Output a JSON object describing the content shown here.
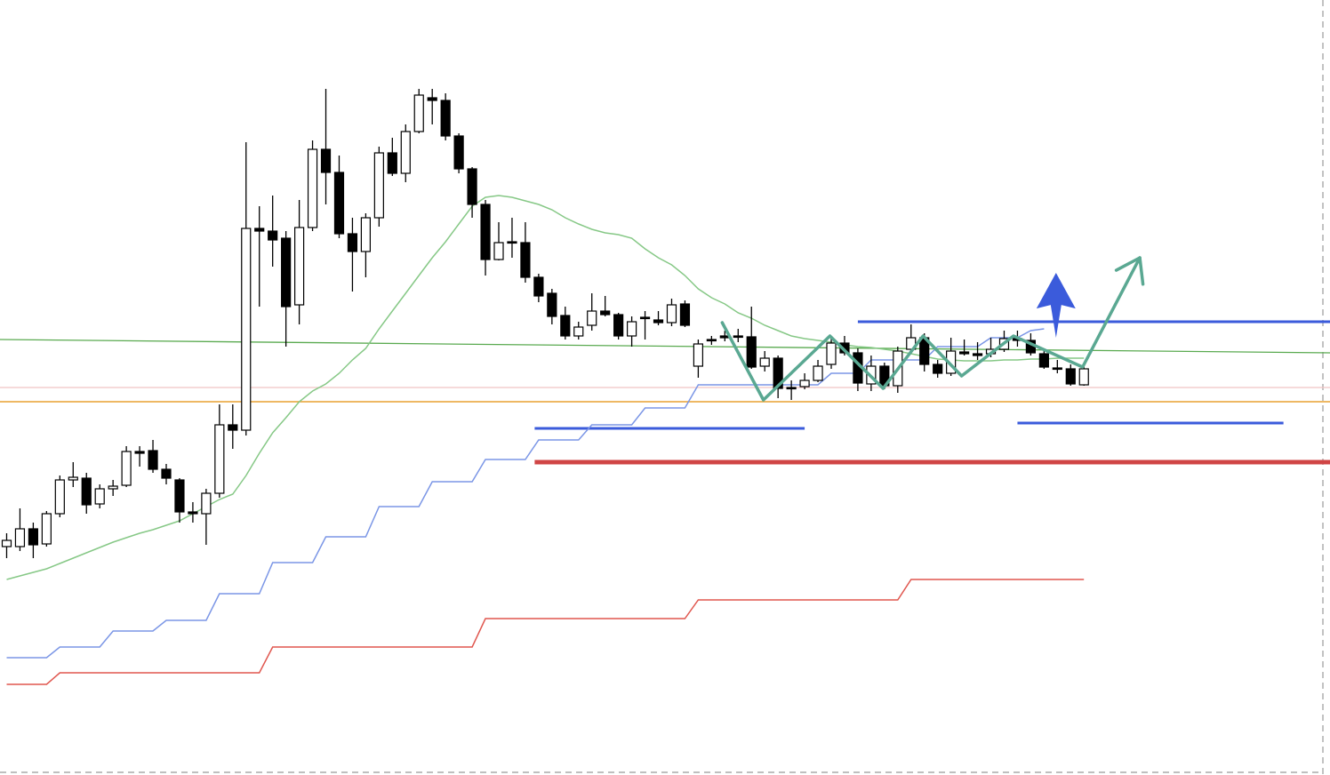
{
  "chart_data": {
    "type": "candlestick",
    "ylim": [
      0,
      872
    ],
    "xlim": [
      -0.5,
      99.5
    ],
    "up_color": "#ffffff",
    "down_color": "#000000",
    "open": [
      257,
      257,
      277,
      260,
      294,
      332,
      334,
      305,
      322,
      326,
      364,
      365,
      344,
      332,
      296,
      294,
      317,
      394,
      388,
      615,
      612,
      604,
      529,
      616,
      704,
      678,
      609,
      589,
      627,
      700,
      677,
      724,
      762,
      759,
      719,
      682,
      642,
      580,
      600,
      599,
      560,
      542,
      517,
      494,
      506,
      522,
      518,
      494,
      515,
      512,
      509,
      530,
      460,
      490,
      494,
      494,
      493,
      460,
      469,
      436,
      437,
      444,
      462,
      486,
      475,
      440,
      460,
      438,
      479,
      492,
      462,
      452,
      476,
      474,
      474,
      479,
      491,
      489,
      474,
      458,
      457,
      439
    ],
    "high": [
      272,
      300,
      284,
      297,
      337,
      352,
      340,
      327,
      332,
      370,
      370,
      377,
      350,
      334,
      307,
      322,
      417,
      417,
      712,
      640,
      652,
      612,
      647,
      714,
      772,
      697,
      627,
      632,
      707,
      717,
      732,
      772,
      772,
      767,
      722,
      684,
      647,
      622,
      627,
      622,
      564,
      547,
      527,
      510,
      542,
      539,
      520,
      516,
      522,
      522,
      536,
      534,
      490,
      494,
      500,
      502,
      527,
      477,
      472,
      444,
      452,
      467,
      494,
      494,
      480,
      472,
      464,
      482,
      507,
      497,
      467,
      492,
      490,
      487,
      492,
      500,
      500,
      497,
      480,
      467,
      462,
      460
    ],
    "low": [
      244,
      252,
      244,
      257,
      290,
      324,
      294,
      300,
      314,
      324,
      347,
      340,
      327,
      284,
      284,
      259,
      312,
      367,
      382,
      527,
      572,
      482,
      507,
      612,
      642,
      604,
      544,
      560,
      617,
      674,
      667,
      722,
      732,
      714,
      677,
      627,
      562,
      579,
      582,
      554,
      532,
      507,
      490,
      490,
      500,
      516,
      490,
      482,
      490,
      506,
      505,
      504,
      447,
      484,
      488,
      487,
      457,
      454,
      424,
      422,
      434,
      442,
      457,
      472,
      432,
      432,
      434,
      430,
      474,
      454,
      447,
      449,
      472,
      467,
      470,
      476,
      482,
      472,
      457,
      452,
      438,
      438
    ],
    "close": [
      264,
      277,
      259,
      294,
      332,
      335,
      304,
      322,
      325,
      364,
      362,
      344,
      334,
      296,
      294,
      317,
      394,
      388,
      615,
      612,
      602,
      527,
      616,
      704,
      678,
      609,
      589,
      627,
      700,
      677,
      724,
      765,
      759,
      719,
      682,
      642,
      580,
      599,
      599,
      560,
      539,
      516,
      494,
      504,
      522,
      518,
      494,
      510,
      514,
      509,
      529,
      506,
      485,
      489,
      492,
      493,
      459,
      469,
      435,
      435,
      444,
      460,
      486,
      475,
      441,
      460,
      438,
      477,
      492,
      462,
      452,
      477,
      474,
      472,
      479,
      491,
      489,
      475,
      459,
      457,
      440,
      457
    ],
    "series": [
      {
        "color": "#86c886",
        "values": [
          220,
          224,
          228,
          232,
          238,
          244,
          250,
          256,
          262,
          267,
          272,
          276,
          281,
          286,
          294,
          302,
          310,
          316,
          337,
          362,
          385,
          402,
          420,
          432,
          440,
          452,
          467,
          480,
          502,
          522,
          542,
          562,
          582,
          600,
          620,
          640,
          650,
          652,
          650,
          646,
          642,
          636,
          627,
          620,
          614,
          610,
          608,
          604,
          592,
          582,
          574,
          562,
          547,
          537,
          530,
          520,
          514,
          506,
          500,
          494,
          491,
          489,
          487,
          484,
          482,
          481,
          479,
          477,
          474,
          471,
          468,
          467,
          466,
          466,
          466,
          467,
          467,
          468,
          468,
          469,
          469,
          469
        ]
      },
      {
        "color": "#7b96e6",
        "values": [
          132,
          132,
          132,
          132,
          144,
          144,
          144,
          144,
          162,
          162,
          162,
          162,
          174,
          174,
          174,
          174,
          204,
          204,
          204,
          204,
          239,
          239,
          239,
          239,
          268,
          268,
          268,
          268,
          302,
          302,
          302,
          302,
          330,
          330,
          330,
          330,
          355,
          355,
          355,
          355,
          377,
          377,
          377,
          377,
          394,
          394,
          394,
          394,
          413,
          413,
          413,
          413,
          439,
          439,
          439,
          439,
          439,
          439,
          439,
          439,
          439,
          439,
          452,
          452,
          452,
          467,
          467,
          467,
          467,
          467,
          482,
          482,
          482,
          482,
          492,
          492,
          492,
          500,
          502,
          null,
          null,
          null
        ]
      },
      {
        "color": "#e0574f",
        "values": [
          102,
          102,
          102,
          102,
          115,
          115,
          115,
          115,
          115,
          115,
          115,
          115,
          115,
          115,
          115,
          115,
          115,
          115,
          115,
          115,
          144,
          144,
          144,
          144,
          144,
          144,
          144,
          144,
          144,
          144,
          144,
          144,
          144,
          144,
          144,
          144,
          176,
          176,
          176,
          176,
          176,
          176,
          176,
          176,
          176,
          176,
          176,
          176,
          176,
          176,
          176,
          176,
          197,
          197,
          197,
          197,
          197,
          197,
          197,
          197,
          197,
          197,
          197,
          197,
          197,
          197,
          197,
          197,
          220,
          220,
          220,
          220,
          220,
          220,
          220,
          220,
          220,
          220,
          220,
          220,
          220,
          220
        ]
      }
    ],
    "levels": [
      {
        "values": [
          490,
          475
        ],
        "x": [
          -0.5,
          99.5
        ],
        "color": "#5aaa50",
        "width": 1.3
      },
      {
        "values": [
          436,
          436
        ],
        "x": [
          -0.5,
          99.5
        ],
        "color": "#f1c4c4",
        "width": 1.3
      },
      {
        "values": [
          420,
          420
        ],
        "x": [
          -0.5,
          99.5
        ],
        "color": "#e8a030",
        "width": 1.6
      },
      {
        "values": [
          510,
          510
        ],
        "x": [
          64,
          99.5
        ],
        "color": "#3b5bdb",
        "width": 3
      },
      {
        "values": [
          390,
          390
        ],
        "x": [
          39.7,
          60
        ],
        "color": "#3b5bdb",
        "width": 3
      },
      {
        "values": [
          396,
          396
        ],
        "x": [
          76,
          96
        ],
        "color": "#3b5bdb",
        "width": 3
      },
      {
        "values": [
          352,
          352
        ],
        "x": [
          39.7,
          99.5
        ],
        "color": "#d04545",
        "width": 5
      }
    ],
    "path": {
      "color": "#5aa892",
      "x": [
        53.8,
        56.9,
        61.9,
        65.9,
        68.9,
        71.8,
        75.7,
        80.9,
        85.2
      ],
      "values": [
        509,
        422,
        494,
        435,
        494,
        449,
        494,
        459,
        582
      ]
    },
    "arrow": {
      "color": "#3b5bdb",
      "x": 78.9,
      "values": [
        492,
        565
      ]
    }
  }
}
